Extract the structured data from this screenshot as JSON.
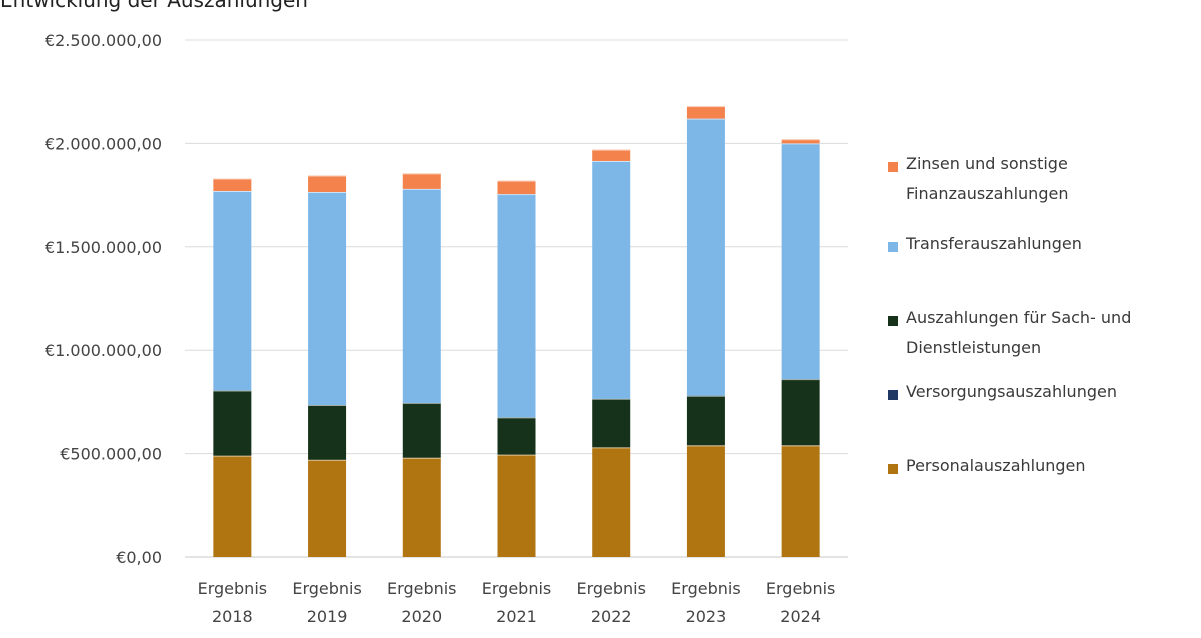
{
  "chart_data": {
    "type": "bar",
    "stacked": true,
    "title": "Entwicklung der Auszahlungen",
    "categories": [
      [
        "Ergebnis",
        "2018"
      ],
      [
        "Ergebnis",
        "2019"
      ],
      [
        "Ergebnis",
        "2020"
      ],
      [
        "Ergebnis",
        "2021"
      ],
      [
        "Ergebnis",
        "2022"
      ],
      [
        "Ergebnis",
        "2023"
      ],
      [
        "Ergebnis",
        "2024"
      ]
    ],
    "ylim": [
      0,
      2500000
    ],
    "yticks": [
      {
        "value": 0,
        "label": "€0,00"
      },
      {
        "value": 500000,
        "label": "€500.000,00"
      },
      {
        "value": 1000000,
        "label": "€1.000.000,00"
      },
      {
        "value": 1500000,
        "label": "€1.500.000,00"
      },
      {
        "value": 2000000,
        "label": "€2.000.000,00"
      },
      {
        "value": 2500000,
        "label": "€2.500.000,00"
      }
    ],
    "grid": true,
    "legend_position": "right",
    "series": [
      {
        "name": "Personalauszahlungen",
        "color": "#b07410",
        "values": [
          490000,
          470000,
          480000,
          495000,
          530000,
          540000,
          540000
        ]
      },
      {
        "name": "Versorgungsauszahlungen",
        "color": "#1f3864",
        "values": [
          0,
          0,
          0,
          0,
          0,
          0,
          0
        ]
      },
      {
        "name": "Auszahlungen für Sach- und Dienstleistungen",
        "color": "#17321a",
        "values": [
          315000,
          265000,
          265000,
          180000,
          235000,
          240000,
          320000
        ]
      },
      {
        "name": "Transferauszahlungen",
        "color": "#7db7e8",
        "values": [
          965000,
          1030000,
          1035000,
          1080000,
          1150000,
          1340000,
          1140000
        ]
      },
      {
        "name": "Zinsen und sonstige Finanzauszahlungen",
        "color": "#f4824c",
        "values": [
          60000,
          80000,
          75000,
          65000,
          55000,
          60000,
          20000
        ]
      }
    ]
  },
  "legend": {
    "items": [
      {
        "label": "Zinsen und sonstige\nFinanzauszahlungen",
        "color": "#f4824c"
      },
      {
        "label": "Transferauszahlungen",
        "color": "#7db7e8"
      },
      {
        "label": "Auszahlungen für Sach- und\nDienstleistungen",
        "color": "#17321a"
      },
      {
        "label": "Versorgungsauszahlungen",
        "color": "#1f3864"
      },
      {
        "label": "Personalauszahlungen",
        "color": "#b07410"
      }
    ]
  }
}
